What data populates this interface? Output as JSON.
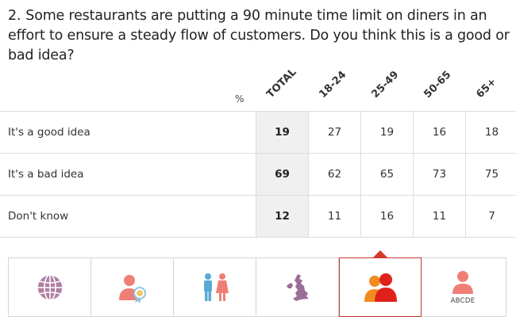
{
  "question": {
    "number": "2.",
    "text": "Some restaurants are putting a 90 minute time limit on diners in an effort to ensure a steady flow of customers. Do you think this is a good or bad idea?"
  },
  "table": {
    "unit_label": "%"
  },
  "chart_data": {
    "type": "table",
    "columns": [
      "TOTAL",
      "18-24",
      "25-49",
      "50-65",
      "65+"
    ],
    "rows": [
      {
        "label": "It's a good idea",
        "values": [
          19,
          27,
          19,
          16,
          18
        ]
      },
      {
        "label": "It's a bad idea",
        "values": [
          69,
          62,
          65,
          73,
          75
        ]
      },
      {
        "label": "Don't know",
        "values": [
          12,
          11,
          16,
          11,
          7
        ]
      }
    ]
  },
  "tabs": [
    {
      "icon": "globe-icon",
      "active": false
    },
    {
      "icon": "person-award-icon",
      "active": false
    },
    {
      "icon": "gender-icon",
      "active": false
    },
    {
      "icon": "uk-map-icon",
      "active": false
    },
    {
      "icon": "age-groups-icon",
      "active": true
    },
    {
      "icon": "social-grade-icon",
      "active": false,
      "label": "ABCDE"
    }
  ],
  "colors": {
    "active_border": "#c0392b",
    "total_bg": "#f0f0f0",
    "globe": "#b07fa3",
    "salmon": "#ef7f76",
    "teal": "#5aaad6",
    "orange": "#f28c1e",
    "red": "#e0201b"
  }
}
